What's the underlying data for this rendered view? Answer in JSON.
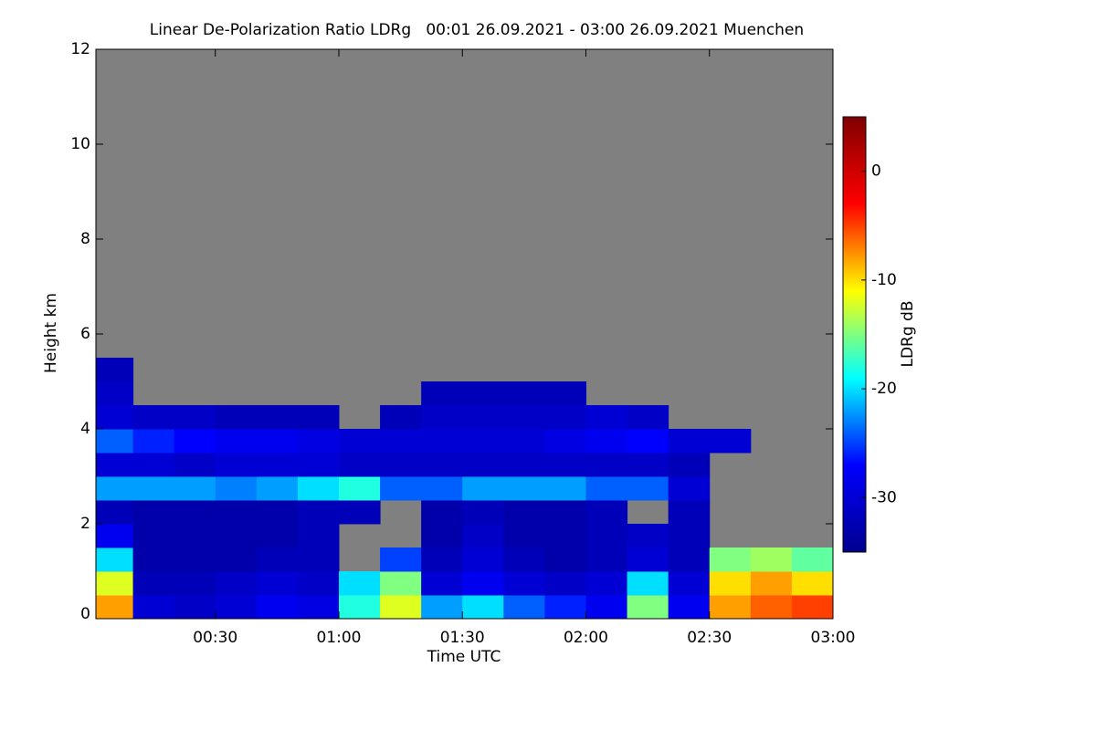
{
  "chart_data": {
    "type": "heatmap",
    "title": "Linear De-Polarization Ratio LDRg   00:01 26.09.2021 - 03:00 26.09.2021 Muenchen",
    "x_label": "Time UTC",
    "y_label": "Height km",
    "colorbar_label": "LDRg dB",
    "x_bins": [
      1,
      10,
      20,
      30,
      40,
      50,
      60,
      70,
      80,
      90,
      100,
      110,
      120,
      130,
      140,
      150,
      160,
      170,
      180
    ],
    "y_bins": [
      0,
      0.5,
      1,
      1.5,
      2,
      2.5,
      3,
      3.5,
      4,
      4.5,
      5,
      5.5
    ],
    "values": [
      [
        -8,
        -30,
        -31,
        -30,
        -28,
        -29,
        -18,
        -12,
        -22,
        -20,
        -24,
        -26,
        -28,
        -15,
        -28,
        -8,
        -6,
        -5
      ],
      [
        -12,
        -32,
        -32,
        -31,
        -30,
        -31,
        -20,
        -15,
        -30,
        -28,
        -30,
        -31,
        -30,
        -20,
        -30,
        -10,
        -8,
        -10
      ],
      [
        -20,
        -33,
        -33,
        -33,
        -32,
        -32,
        null,
        -25,
        -32,
        -30,
        -32,
        -33,
        -32,
        -30,
        -32,
        -15,
        -14,
        -16
      ],
      [
        -28,
        -33,
        -33,
        -33,
        -33,
        -32,
        null,
        null,
        -33,
        -31,
        -33,
        -33,
        -32,
        -31,
        -32,
        null,
        null,
        null
      ],
      [
        -32,
        -33,
        -33,
        -33,
        -33,
        -32,
        -32,
        null,
        -33,
        -32,
        -33,
        -33,
        -32,
        null,
        -32,
        null,
        null,
        null
      ],
      [
        -22,
        -22,
        -22,
        -23,
        -22,
        -20,
        -18,
        -24,
        -24,
        -22,
        -22,
        -22,
        -24,
        -24,
        -30,
        null,
        null,
        null
      ],
      [
        -30,
        -30,
        -31,
        -30,
        -30,
        -30,
        -31,
        -31,
        -31,
        -31,
        -31,
        -31,
        -31,
        -31,
        -32,
        null,
        null,
        null
      ],
      [
        -24,
        -26,
        -27,
        -28,
        -28,
        -29,
        -30,
        -30,
        -30,
        -30,
        -30,
        -29,
        -28,
        -27,
        -30,
        -30,
        null,
        null
      ],
      [
        -30,
        -31,
        -31,
        -32,
        -32,
        -32,
        null,
        -32,
        -31,
        -31,
        -31,
        -31,
        -30,
        -31,
        null,
        null,
        null,
        null
      ],
      [
        -31,
        null,
        null,
        null,
        null,
        null,
        null,
        null,
        -32,
        -32,
        -32,
        -32,
        null,
        null,
        null,
        null,
        null,
        null
      ],
      [
        -32,
        null,
        null,
        null,
        null,
        null,
        null,
        null,
        null,
        null,
        null,
        null,
        null,
        null,
        null,
        null,
        null,
        null
      ]
    ],
    "xlim": [
      1,
      180
    ],
    "xticks": [
      {
        "value": 30,
        "label": "00:30"
      },
      {
        "value": 60,
        "label": "01:00"
      },
      {
        "value": 90,
        "label": "01:30"
      },
      {
        "value": 120,
        "label": "02:00"
      },
      {
        "value": 150,
        "label": "02:30"
      },
      {
        "value": 180,
        "label": "03:00"
      }
    ],
    "ylim": [
      0,
      12
    ],
    "yticks": [
      0,
      2,
      4,
      6,
      8,
      10,
      12
    ],
    "zlim": [
      -35,
      5
    ],
    "zticks": [
      -30,
      -20,
      -10,
      0
    ],
    "colormap": [
      "#00008f",
      "#0000ff",
      "#00ffff",
      "#ffff00",
      "#ff0000",
      "#800000"
    ],
    "missing_color": "#808080"
  }
}
